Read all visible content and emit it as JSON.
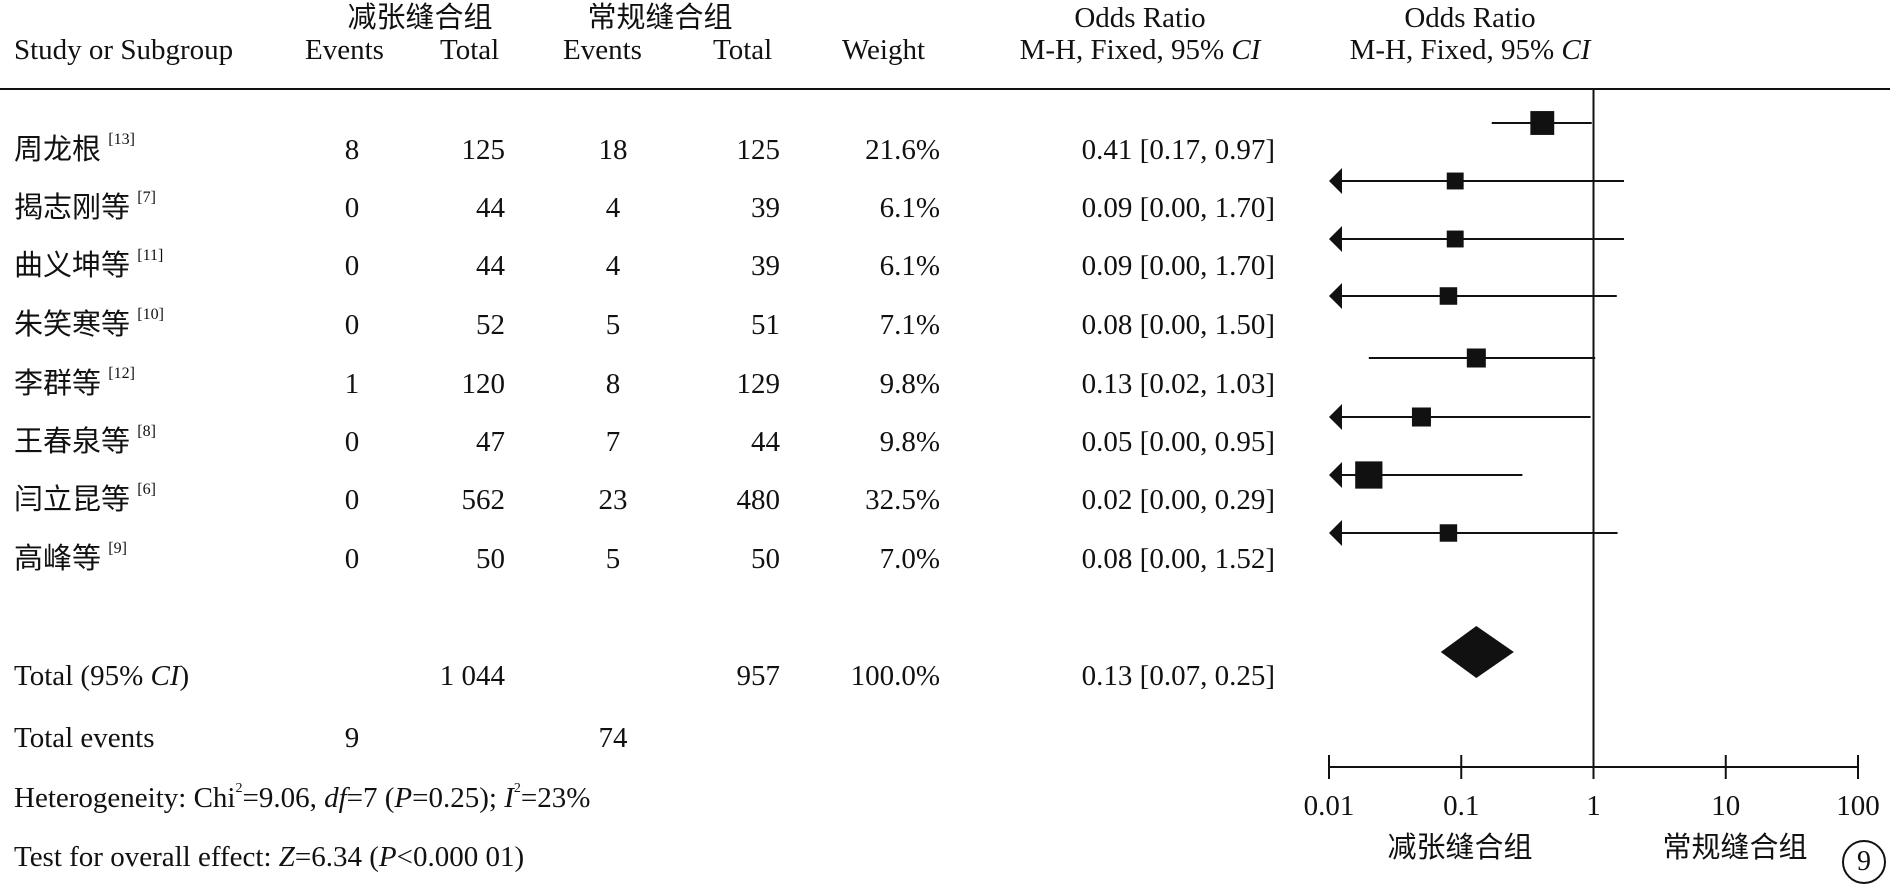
{
  "header": {
    "group1": "减张缝合组",
    "group2": "常规缝合组",
    "or_title": "Odds Ratio",
    "or_title_plot": "Odds Ratio",
    "study_col": "Study or Subgroup",
    "events": "Events",
    "total": "Total",
    "weight": "Weight",
    "method_prefix": "M-H, Fixed, 95%",
    "method_ci": "CI"
  },
  "studies": [
    {
      "name": "周龙根",
      "ref": "[13]",
      "e1": "8",
      "n1": "125",
      "e2": "18",
      "n2": "125",
      "weight": "21.6%",
      "or_text": "0.41 [0.17, 0.97]"
    },
    {
      "name": "揭志刚等",
      "ref": "[7]",
      "e1": "0",
      "n1": "44",
      "e2": "4",
      "n2": "39",
      "weight": "6.1%",
      "or_text": "0.09 [0.00, 1.70]"
    },
    {
      "name": "曲义坤等",
      "ref": "[11]",
      "e1": "0",
      "n1": "44",
      "e2": "4",
      "n2": "39",
      "weight": "6.1%",
      "or_text": "0.09 [0.00, 1.70]"
    },
    {
      "name": "朱笑寒等",
      "ref": "[10]",
      "e1": "0",
      "n1": "52",
      "e2": "5",
      "n2": "51",
      "weight": "7.1%",
      "or_text": "0.08 [0.00, 1.50]"
    },
    {
      "name": "李群等",
      "ref": "[12]",
      "e1": "1",
      "n1": "120",
      "e2": "8",
      "n2": "129",
      "weight": "9.8%",
      "or_text": "0.13 [0.02, 1.03]"
    },
    {
      "name": "王春泉等",
      "ref": "[8]",
      "e1": "0",
      "n1": "47",
      "e2": "7",
      "n2": "44",
      "weight": "9.8%",
      "or_text": "0.05 [0.00, 0.95]"
    },
    {
      "name": "闫立昆等",
      "ref": "[6]",
      "e1": "0",
      "n1": "562",
      "e2": "23",
      "n2": "480",
      "weight": "32.5%",
      "or_text": "0.02 [0.00, 0.29]"
    },
    {
      "name": "高峰等",
      "ref": "[9]",
      "e1": "0",
      "n1": "50",
      "e2": "5",
      "n2": "50",
      "weight": "7.0%",
      "or_text": "0.08 [0.00, 1.52]"
    }
  ],
  "total": {
    "label_prefix": "Total (95% ",
    "label_ci": "CI",
    "label_suffix": ")",
    "n1": "1 044",
    "n2": "957",
    "weight": "100.0%",
    "or_text": "0.13 [0.07, 0.25]"
  },
  "total_events": {
    "label": "Total events",
    "e1": "9",
    "e2": "74"
  },
  "heterogeneity": {
    "prefix": "Heterogeneity: Chi",
    "sup2": "2",
    "chi_val": "=9.06, ",
    "df_label": "df",
    "df_val": "=7 (",
    "p_label": "P",
    "p_val": "=0.25); ",
    "i_label": "I",
    "i_sup": "2",
    "i_val": "=23%"
  },
  "overall": {
    "prefix": "Test for overall effect: ",
    "z_label": "Z",
    "z_val": "=6.34 (",
    "p_label": "P",
    "p_val": "<0.000 01)"
  },
  "axis": {
    "ticks": [
      "0.01",
      "0.1",
      "1",
      "10",
      "100"
    ],
    "favours_left": "减张缝合组",
    "favours_right": "常规缝合组"
  },
  "page_number": "9",
  "chart_data": {
    "type": "forest",
    "xscale": "log",
    "xlim": [
      0.01,
      100
    ],
    "xticks": [
      0.01,
      0.1,
      1,
      10,
      100
    ],
    "reference_line": 1,
    "series": [
      {
        "name": "周龙根",
        "or": 0.41,
        "lo": 0.17,
        "hi": 0.97,
        "weight": 21.6
      },
      {
        "name": "揭志刚等",
        "or": 0.09,
        "lo": 0.0,
        "hi": 1.7,
        "weight": 6.1
      },
      {
        "name": "曲义坤等",
        "or": 0.09,
        "lo": 0.0,
        "hi": 1.7,
        "weight": 6.1
      },
      {
        "name": "朱笑寒等",
        "or": 0.08,
        "lo": 0.0,
        "hi": 1.5,
        "weight": 7.1
      },
      {
        "name": "李群等",
        "or": 0.13,
        "lo": 0.02,
        "hi": 1.03,
        "weight": 9.8
      },
      {
        "name": "王春泉等",
        "or": 0.05,
        "lo": 0.0,
        "hi": 0.95,
        "weight": 9.8
      },
      {
        "name": "闫立昆等",
        "or": 0.02,
        "lo": 0.0,
        "hi": 0.29,
        "weight": 32.5
      },
      {
        "name": "高峰等",
        "or": 0.08,
        "lo": 0.0,
        "hi": 1.52,
        "weight": 7.0
      }
    ],
    "pooled": {
      "or": 0.13,
      "lo": 0.07,
      "hi": 0.25
    }
  }
}
